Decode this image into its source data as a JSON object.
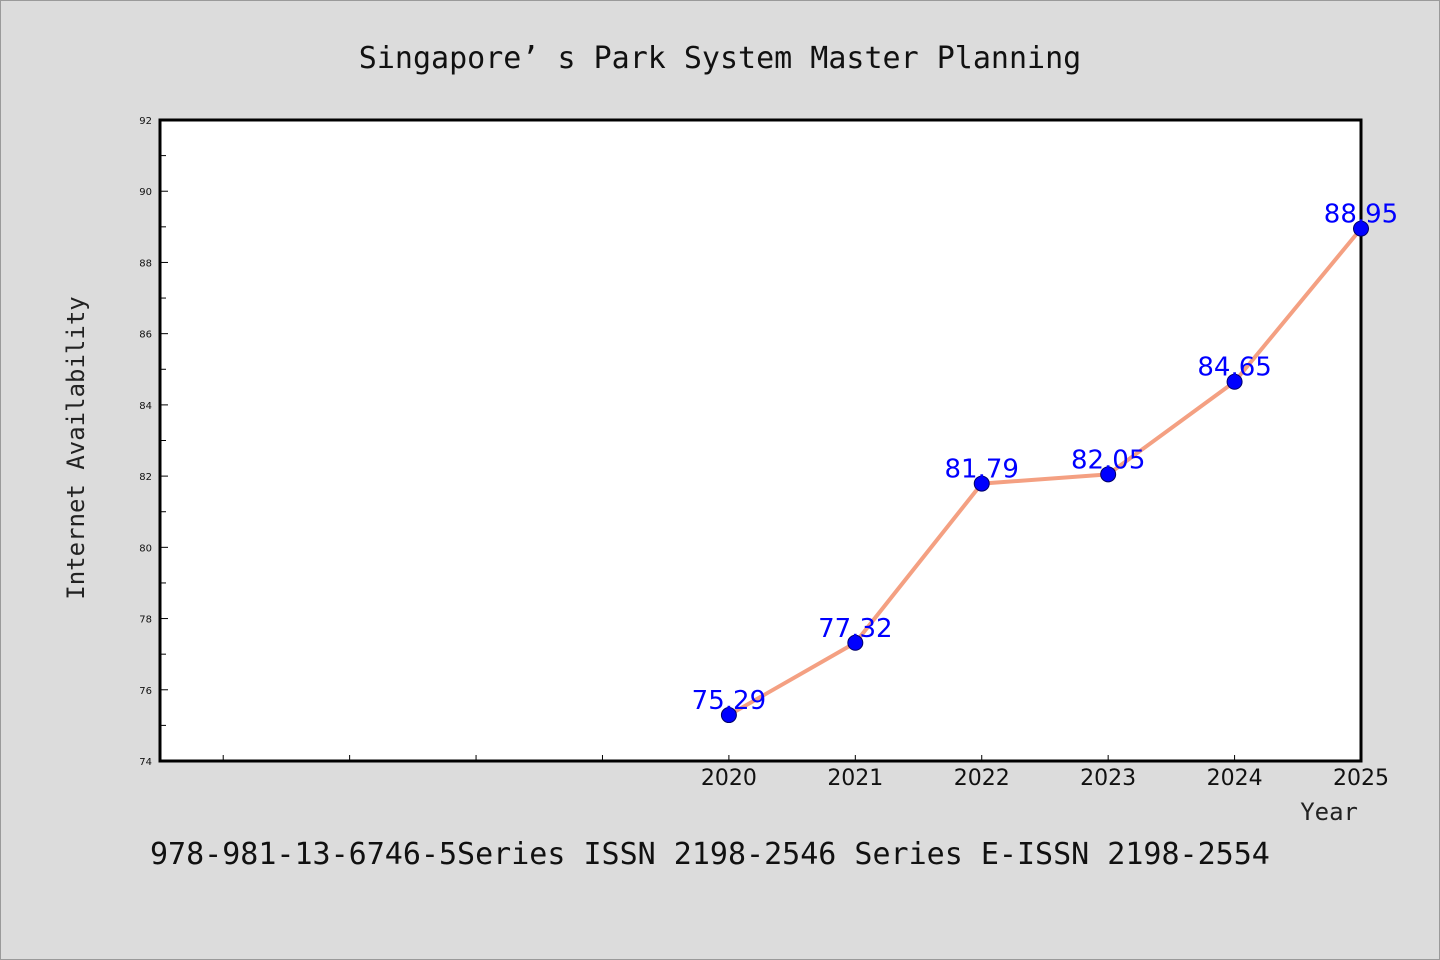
{
  "chart_data": {
    "type": "line",
    "title": "Singapore’ s Park System Master Planning",
    "xlabel": "Year",
    "ylabel": "Internet Availability",
    "x": [
      "2020",
      "2021",
      "2022",
      "2023",
      "2024",
      "2025"
    ],
    "series": [
      {
        "values": [
          75.29,
          77.32,
          81.79,
          82.05,
          84.65,
          88.95
        ]
      }
    ],
    "data_labels": [
      "75.29",
      "77.32",
      "81.79",
      "82.05",
      "84.65",
      "88.95"
    ],
    "ylim": [
      74,
      92
    ],
    "yticks": [
      74,
      76,
      78,
      80,
      82,
      84,
      86,
      88,
      90,
      92
    ],
    "x_empty_slots_before": 4,
    "grid": false,
    "line_color": "#f4a082",
    "marker_color": "#0000ff",
    "label_color": "#0000ff"
  },
  "footer": "978-981-13-6746-5Series ISSN 2198-2546 Series E-ISSN 2198-2554"
}
